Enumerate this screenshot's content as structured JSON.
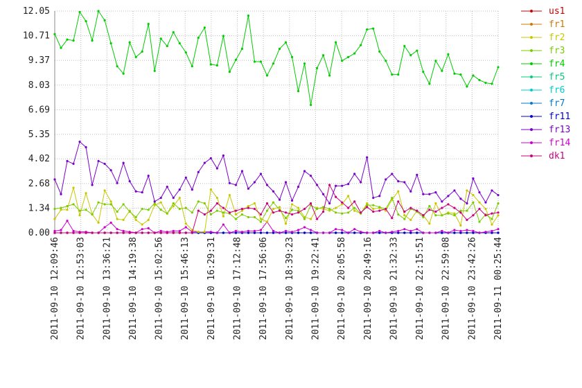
{
  "chart_data": {
    "type": "line",
    "xlim": [
      0,
      71
    ],
    "xticks": [
      {
        "value": 0,
        "label": "2011-09-10 12:09:46"
      },
      {
        "value": 4.18,
        "label": "2011-09-10 12:53:03"
      },
      {
        "value": 8.35,
        "label": "2011-09-10 13:36:21"
      },
      {
        "value": 12.53,
        "label": "2011-09-10 14:19:38"
      },
      {
        "value": 16.71,
        "label": "2011-09-10 15:02:56"
      },
      {
        "value": 20.88,
        "label": "2011-09-10 15:46:13"
      },
      {
        "value": 25.06,
        "label": "2011-09-10 16:29:31"
      },
      {
        "value": 29.24,
        "label": "2011-09-10 17:12:48"
      },
      {
        "value": 33.41,
        "label": "2011-09-10 17:56:06"
      },
      {
        "value": 37.59,
        "label": "2011-09-10 18:39:23"
      },
      {
        "value": 41.76,
        "label": "2011-09-10 19:22:41"
      },
      {
        "value": 45.94,
        "label": "2011-09-10 20:05:58"
      },
      {
        "value": 50.12,
        "label": "2011-09-10 20:49:16"
      },
      {
        "value": 54.29,
        "label": "2011-09-10 21:32:33"
      },
      {
        "value": 58.47,
        "label": "2011-09-10 22:15:51"
      },
      {
        "value": 62.65,
        "label": "2011-09-10 22:59:08"
      },
      {
        "value": 66.82,
        "label": "2011-09-10 23:42:26"
      },
      {
        "value": 71,
        "label": "2011-09-11 00:25:44"
      }
    ],
    "ylim": [
      0,
      12.05
    ],
    "yticks": [
      {
        "value": 0,
        "label": "0.00"
      },
      1.34,
      2.68,
      4.02,
      5.35,
      6.69,
      8.03,
      9.37,
      10.71,
      12.05
    ],
    "grid": true,
    "legend": "right",
    "series": [
      {
        "name": "us1",
        "color": "#cc0000",
        "values": [
          0,
          0,
          0,
          0,
          0,
          0,
          0,
          0,
          0,
          0,
          0,
          0,
          0,
          0,
          0,
          0,
          0,
          0,
          0,
          0,
          0,
          0,
          0,
          0,
          0,
          0,
          0,
          0,
          0,
          0,
          0,
          0,
          0,
          0,
          0,
          0,
          0,
          0,
          0,
          0,
          0,
          0,
          0,
          0,
          0,
          0,
          0,
          0,
          0,
          0,
          0,
          0,
          0,
          0,
          0,
          0,
          0,
          0,
          0,
          0,
          0,
          0,
          0,
          0,
          0,
          0,
          0,
          0,
          0,
          0,
          0,
          0
        ]
      },
      {
        "name": "fr1",
        "color": "#cc7a00",
        "values": [
          0,
          0,
          0,
          0,
          0,
          0,
          0,
          0,
          0,
          0,
          0,
          0,
          0,
          0,
          0,
          0,
          0,
          0,
          0,
          0,
          0,
          0,
          0,
          0,
          0,
          0,
          0,
          0,
          0,
          0,
          0,
          0,
          0,
          0,
          0,
          0,
          0,
          0,
          0,
          0,
          0,
          0,
          0,
          0,
          0,
          0,
          0,
          0,
          0,
          0,
          0,
          0,
          0,
          0,
          0,
          0,
          0,
          0,
          0,
          0,
          0,
          0,
          0,
          0,
          0,
          0,
          0,
          0,
          0,
          0,
          0,
          0
        ]
      },
      {
        "name": "fr5",
        "color": "#00cc7a",
        "values": [
          0,
          0,
          0,
          0,
          0,
          0,
          0,
          0,
          0,
          0,
          0,
          0,
          0,
          0,
          0,
          0,
          0,
          0,
          0,
          0,
          0,
          0,
          0,
          0,
          0,
          0,
          0,
          0,
          0,
          0,
          0,
          0,
          0,
          0,
          0,
          0,
          0,
          0,
          0,
          0,
          0,
          0,
          0,
          0,
          0,
          0,
          0,
          0,
          0,
          0,
          0,
          0,
          0,
          0,
          0,
          0,
          0,
          0,
          0,
          0,
          0,
          0,
          0,
          0,
          0,
          0,
          0,
          0,
          0,
          0,
          0,
          0
        ]
      },
      {
        "name": "fr6",
        "color": "#00cccc",
        "values": [
          0,
          0,
          0,
          0,
          0,
          0,
          0,
          0,
          0,
          0,
          0,
          0,
          0,
          0,
          0,
          0,
          0,
          0,
          0,
          0,
          0,
          0,
          0,
          0,
          0,
          0,
          0,
          0,
          0,
          0,
          0,
          0,
          0,
          0,
          0,
          0,
          0,
          0,
          0,
          0,
          0,
          0,
          0,
          0,
          0,
          0,
          0,
          0,
          0,
          0,
          0,
          0,
          0,
          0,
          0,
          0,
          0,
          0,
          0,
          0,
          0,
          0,
          0,
          0,
          0,
          0,
          0,
          0,
          0,
          0,
          0,
          0
        ]
      },
      {
        "name": "fr7",
        "color": "#007acc",
        "values": [
          0,
          0,
          0,
          0,
          0,
          0,
          0,
          0,
          0,
          0,
          0,
          0,
          0,
          0,
          0,
          0,
          0,
          0,
          0,
          0,
          0,
          0,
          0,
          0,
          0,
          0,
          0,
          0,
          0,
          0,
          0,
          0,
          0,
          0,
          0,
          0,
          0,
          0,
          0,
          0,
          0,
          0,
          0,
          0,
          0,
          0,
          0,
          0,
          0,
          0,
          0,
          0,
          0,
          0,
          0,
          0,
          0,
          0,
          0,
          0,
          0,
          0,
          0,
          0,
          0,
          0,
          0,
          0,
          0,
          0,
          0,
          0
        ]
      },
      {
        "name": "fr11",
        "color": "#0000cc",
        "values": [
          0,
          0,
          0,
          0,
          0,
          0,
          0,
          0,
          0,
          0,
          0,
          0,
          0,
          0,
          0,
          0,
          0,
          0,
          0,
          0,
          0,
          0,
          0,
          0,
          0,
          0,
          0,
          0,
          0,
          0,
          0,
          0,
          0,
          0,
          0,
          0,
          0,
          0,
          0,
          0,
          0,
          0,
          0,
          0,
          0,
          0,
          0,
          0,
          0,
          0,
          0,
          0,
          0,
          0,
          0,
          0,
          0,
          0,
          0,
          0,
          0,
          0,
          0,
          0,
          0,
          0,
          0,
          0,
          0,
          0,
          0,
          0
        ]
      },
      {
        "name": "fr14",
        "color": "#cc00cc",
        "values": [
          0.1,
          0.15,
          0.65,
          0.1,
          0.05,
          0.05,
          0,
          0,
          0.3,
          0.55,
          0.2,
          0.1,
          0.05,
          0,
          0.2,
          0.25,
          0,
          0.1,
          0.05,
          0.1,
          0.1,
          0.3,
          0.05,
          0.05,
          0.05,
          0.05,
          0,
          0.45,
          0,
          0.1,
          0.05,
          0.1,
          0.1,
          0.15,
          0.6,
          0.1,
          0,
          0.1,
          0.05,
          0.15,
          0.3,
          0.15,
          0,
          0,
          0,
          0.2,
          0.15,
          0,
          0.2,
          0.05,
          0,
          0,
          0.1,
          0,
          0.05,
          0.1,
          0.2,
          0.1,
          0.2,
          0,
          0,
          0,
          0.1,
          0,
          0.15,
          0.1,
          0.15,
          0.1,
          0,
          0.05,
          0.1,
          0.2
        ]
      },
      {
        "name": "fr2",
        "color": "#c8c800",
        "values": [
          0.75,
          1.25,
          1.25,
          2.45,
          0.95,
          2.15,
          1.0,
          0.55,
          2.3,
          1.7,
          0.75,
          0.7,
          1.2,
          0.7,
          0.45,
          0.7,
          1.5,
          1.65,
          1.05,
          1.45,
          1.9,
          0.5,
          0.15,
          0.05,
          0.05,
          2.35,
          1.9,
          0.9,
          2.05,
          1.0,
          1.2,
          1.45,
          1.6,
          0.75,
          0.6,
          1.3,
          1.4,
          0.5,
          1.55,
          1.35,
          0.85,
          0.75,
          1.35,
          1.3,
          1.2,
          1.35,
          1.55,
          2.0,
          1.2,
          1.05,
          1.6,
          1.3,
          1.35,
          1.2,
          1.8,
          2.25,
          0.95,
          0.7,
          1.2,
          0.95,
          0.5,
          1.6,
          0.95,
          1.1,
          1.05,
          0.4,
          2.3,
          2.05,
          1.65,
          1.3,
          0.45,
          0.95
        ]
      },
      {
        "name": "fr3",
        "color": "#7acc00",
        "values": [
          1.3,
          1.35,
          1.45,
          1.55,
          1.2,
          1.25,
          1.0,
          1.65,
          1.55,
          1.55,
          1.15,
          1.55,
          1.15,
          0.85,
          1.3,
          1.25,
          1.6,
          1.25,
          1.05,
          1.6,
          1.3,
          1.35,
          1.1,
          1.7,
          1.6,
          1.0,
          1.2,
          1.1,
          1.05,
          0.75,
          1.0,
          0.85,
          0.85,
          0.6,
          1.2,
          1.65,
          1.25,
          0.8,
          1.25,
          1.2,
          0.75,
          1.5,
          1.3,
          1.4,
          1.3,
          1.1,
          1.05,
          1.1,
          1.35,
          1.05,
          1.5,
          1.5,
          1.4,
          1.3,
          1.9,
          1.0,
          0.75,
          1.3,
          1.15,
          0.85,
          1.45,
          0.95,
          0.95,
          1.05,
          0.95,
          1.2,
          1.2,
          1.65,
          0.6,
          1.0,
          0.75,
          1.6
        ]
      },
      {
        "name": "dk1",
        "color": "#cc007a",
        "values": [
          0,
          0,
          0,
          0,
          0,
          0,
          0,
          0,
          0,
          0,
          0,
          0,
          0,
          0,
          0,
          0,
          0,
          0,
          0,
          0,
          0,
          0,
          0,
          1.2,
          1.0,
          1.2,
          1.6,
          1.35,
          1.1,
          1.2,
          1.3,
          1.35,
          1.3,
          1.0,
          1.6,
          1.1,
          1.2,
          1.1,
          1.0,
          1.1,
          1.3,
          1.6,
          0.75,
          1.15,
          2.6,
          1.95,
          1.65,
          1.35,
          1.7,
          1.1,
          1.4,
          1.15,
          1.2,
          1.3,
          0.8,
          1.7,
          1.15,
          1.35,
          1.2,
          0.95,
          1.25,
          1.15,
          1.35,
          1.55,
          1.35,
          1.1,
          0.7,
          0.95,
          1.3,
          0.95,
          1.05,
          1.1
        ]
      },
      {
        "name": "fr13",
        "color": "#7a00cc",
        "values": [
          2.9,
          2.1,
          3.9,
          3.75,
          4.95,
          4.65,
          2.6,
          3.9,
          3.75,
          3.4,
          2.7,
          3.8,
          2.8,
          2.25,
          2.2,
          3.1,
          1.7,
          1.9,
          2.5,
          1.9,
          2.35,
          3.0,
          2.35,
          3.3,
          3.8,
          4.05,
          3.5,
          4.2,
          2.7,
          2.6,
          3.35,
          2.4,
          2.75,
          3.2,
          2.6,
          2.25,
          1.8,
          2.75,
          1.75,
          2.5,
          3.35,
          3.1,
          2.6,
          2.1,
          1.6,
          2.55,
          2.55,
          2.65,
          3.2,
          2.75,
          4.1,
          1.9,
          2.0,
          2.9,
          3.2,
          2.8,
          2.75,
          2.25,
          3.15,
          2.1,
          2.1,
          2.2,
          1.7,
          2.0,
          2.3,
          1.85,
          1.6,
          2.95,
          2.2,
          1.65,
          2.3,
          2.05
        ]
      },
      {
        "name": "fr4",
        "color": "#00cc00",
        "values": [
          10.8,
          10.05,
          10.5,
          10.45,
          12.0,
          11.5,
          10.45,
          12.05,
          11.55,
          10.3,
          9.05,
          8.65,
          10.35,
          9.55,
          9.85,
          11.35,
          8.8,
          10.55,
          10.15,
          10.9,
          10.3,
          9.8,
          9.05,
          10.6,
          11.15,
          9.15,
          9.1,
          10.7,
          8.75,
          9.4,
          10.0,
          11.8,
          9.3,
          9.3,
          8.55,
          9.2,
          10.0,
          10.35,
          9.55,
          7.7,
          9.2,
          6.95,
          8.95,
          9.65,
          8.55,
          10.35,
          9.35,
          9.55,
          9.75,
          10.2,
          11.05,
          11.1,
          9.85,
          9.35,
          8.6,
          8.6,
          10.15,
          9.65,
          9.9,
          8.75,
          8.1,
          9.35,
          8.8,
          9.7,
          8.65,
          8.6,
          7.95,
          8.55,
          8.3,
          8.15,
          8.1,
          9.0
        ]
      }
    ]
  }
}
